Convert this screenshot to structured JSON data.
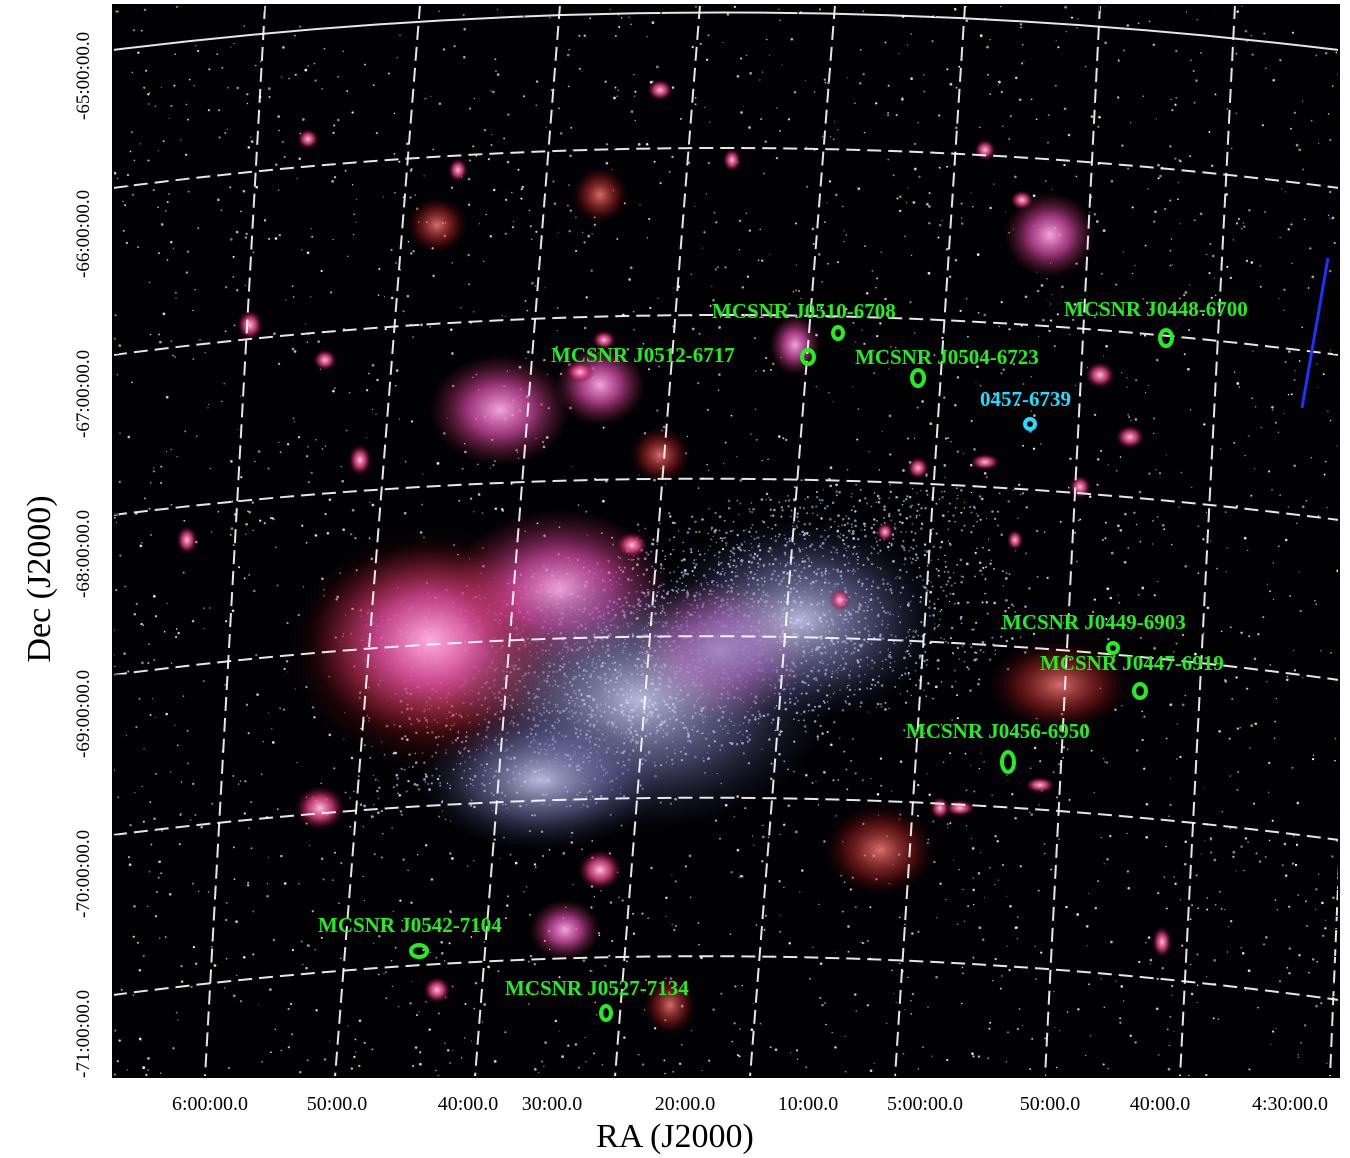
{
  "figure": {
    "xlabel": "RA (J2000)",
    "ylabel": "Dec (J2000)",
    "ra_ticks": [
      "6:00:00.0",
      "50:00.0",
      "40:00.0",
      "30:00.0",
      "20:00.0",
      "10:00.0",
      "5:00:00.0",
      "50:00.0",
      "40:00.0",
      "4:30:00.0"
    ],
    "dec_ticks": [
      "-65:00:00.0",
      "-66:00:00.0",
      "-67:00:00.0",
      "-68:00:00.0",
      "-69:00:00.0",
      "-70:00:00.0",
      "-71:00:00.0"
    ],
    "label_color_green": "#22ee22",
    "label_color_cyan": "#22ddff",
    "background_color": "#000000",
    "grid_color": "#ffffff"
  },
  "remnants": [
    {
      "id": "J0510",
      "label": "MCSNR J0510-6708",
      "color": "green"
    },
    {
      "id": "J0448",
      "label": "MCSNR J0448-6700",
      "color": "green"
    },
    {
      "id": "J0512",
      "label": "MCSNR J0512-6717",
      "color": "green"
    },
    {
      "id": "J0504",
      "label": "MCSNR J0504-6723",
      "color": "green"
    },
    {
      "id": "N0457",
      "label": "0457-6739",
      "color": "cyan"
    },
    {
      "id": "J0449",
      "label": "MCSNR J0449-6903",
      "color": "green"
    },
    {
      "id": "J0447",
      "label": "MCSNR J0447-6919",
      "color": "green"
    },
    {
      "id": "J0456",
      "label": "MCSNR J0456-6950",
      "color": "green"
    },
    {
      "id": "J0542",
      "label": "MCSNR J0542-7104",
      "color": "green"
    },
    {
      "id": "J0527",
      "label": "MCSNR J0527-7134",
      "color": "green"
    }
  ]
}
